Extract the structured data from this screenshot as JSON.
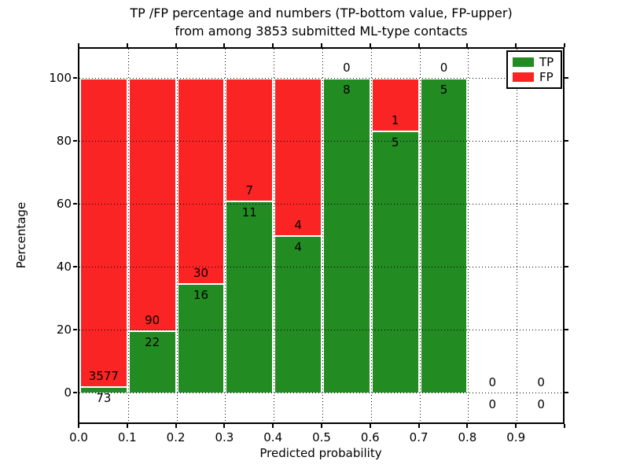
{
  "chart_data": {
    "type": "bar",
    "stacked": true,
    "title_line1": "TP /FP percentage and numbers (TP-bottom value, FP-upper)",
    "title_line2": "from among 3853 submitted ML-type contacts",
    "xlabel": "Predicted probability",
    "ylabel": "Percentage",
    "total_contacts": 3853,
    "bins": [
      0.0,
      0.1,
      0.2,
      0.3,
      0.4,
      0.5,
      0.6,
      0.7,
      0.8,
      0.9
    ],
    "bin_width": 0.1,
    "x_tick_labels": [
      "0.0",
      "0.1",
      "0.2",
      "0.3",
      "0.4",
      "0.5",
      "0.6",
      "0.7",
      "0.8",
      "0.9"
    ],
    "y_ticks": [
      0,
      20,
      40,
      60,
      80,
      100
    ],
    "xlim": [
      0.0,
      1.0
    ],
    "ylim": [
      -10,
      110
    ],
    "grid_style": "dotted",
    "annotation_note": "TP count shown below TP/FP boundary, FP count above",
    "series": [
      {
        "name": "TP",
        "color": "#228B22",
        "counts": [
          73,
          22,
          16,
          11,
          4,
          8,
          5,
          5,
          0,
          0
        ],
        "pct": [
          2.0,
          19.64,
          34.78,
          61.11,
          50.0,
          100.0,
          83.33,
          100.0,
          0.0,
          0.0
        ]
      },
      {
        "name": "FP",
        "color": "#FB2424",
        "counts": [
          3577,
          90,
          30,
          7,
          4,
          0,
          1,
          0,
          0,
          0
        ],
        "pct": [
          98.0,
          80.36,
          65.22,
          38.89,
          50.0,
          0.0,
          16.67,
          0.0,
          0.0,
          0.0
        ]
      }
    ],
    "legend": {
      "position": "upper right",
      "entries": [
        {
          "label": "TP",
          "color": "#228B22"
        },
        {
          "label": "FP",
          "color": "#FB2424"
        }
      ]
    }
  }
}
